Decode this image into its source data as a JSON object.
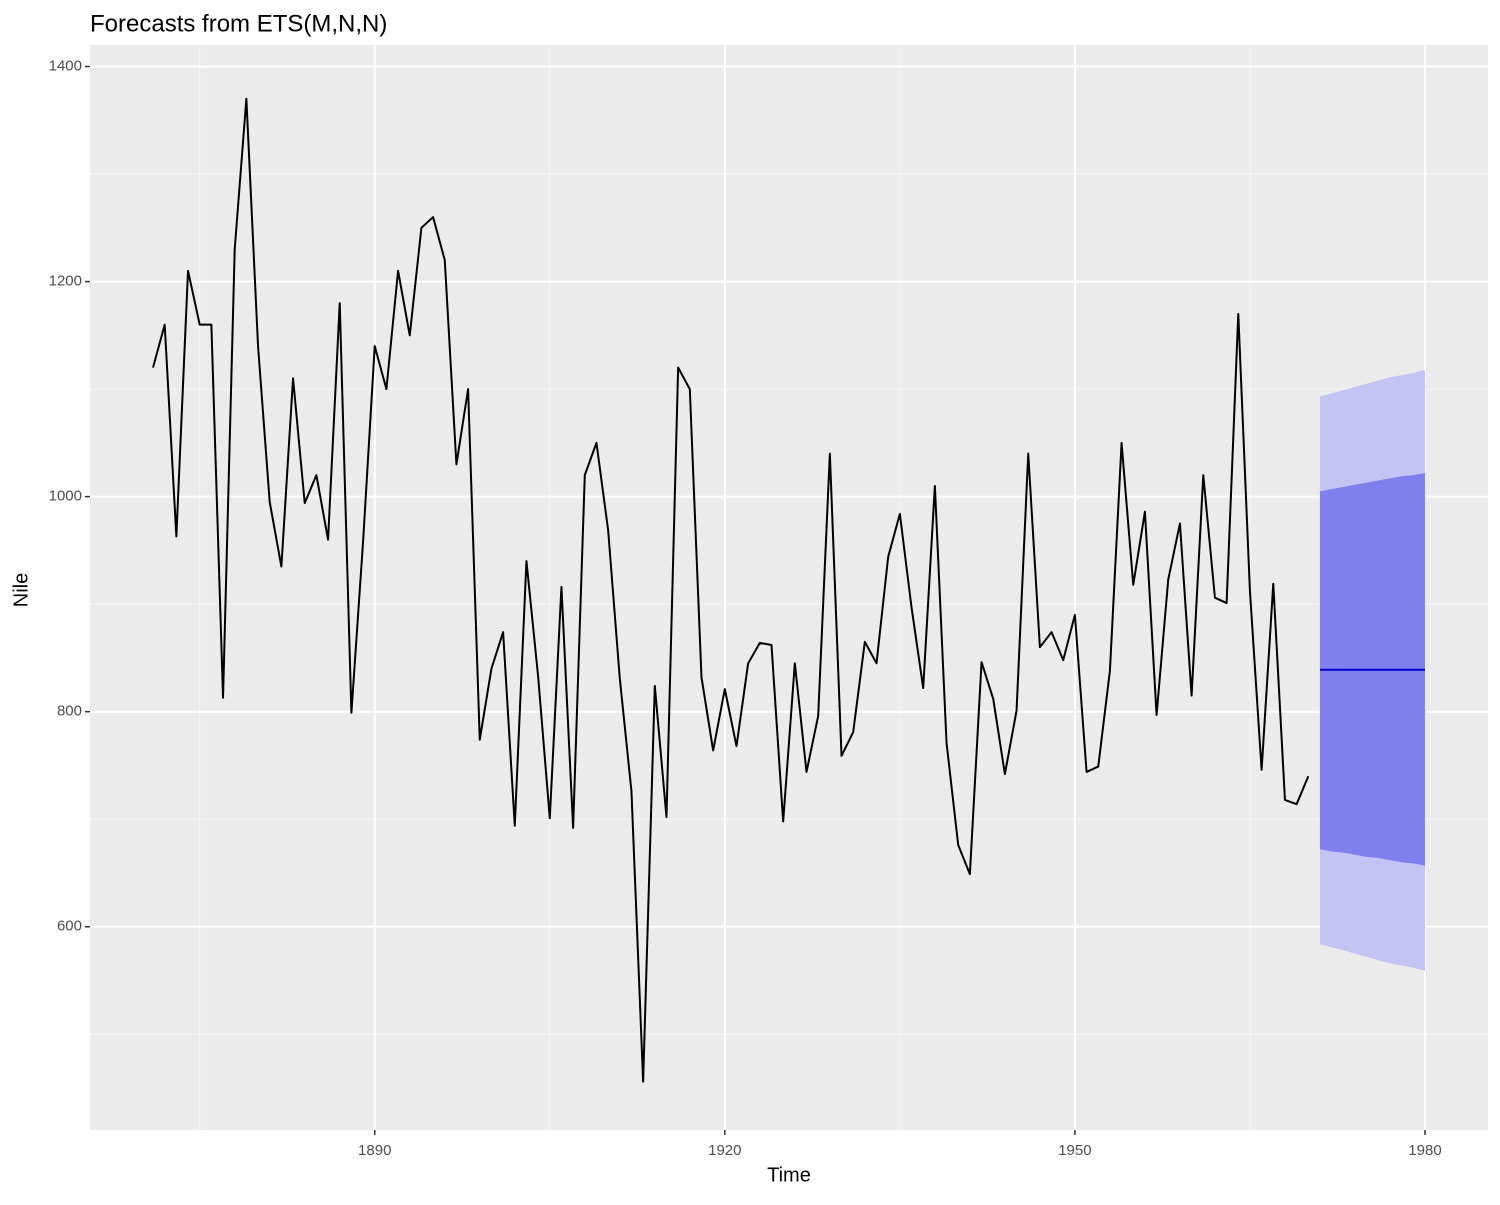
{
  "chart_data": {
    "type": "line",
    "title": "Forecasts from ETS(M,N,N)",
    "x_label": "Time",
    "y_label": "Nile",
    "x": [
      1871,
      1872,
      1873,
      1874,
      1875,
      1876,
      1877,
      1878,
      1879,
      1880,
      1881,
      1882,
      1883,
      1884,
      1885,
      1886,
      1887,
      1888,
      1889,
      1890,
      1891,
      1892,
      1893,
      1894,
      1895,
      1896,
      1897,
      1898,
      1899,
      1900,
      1901,
      1902,
      1903,
      1904,
      1905,
      1906,
      1907,
      1908,
      1909,
      1910,
      1911,
      1912,
      1913,
      1914,
      1915,
      1916,
      1917,
      1918,
      1919,
      1920,
      1921,
      1922,
      1923,
      1924,
      1925,
      1926,
      1927,
      1928,
      1929,
      1930,
      1931,
      1932,
      1933,
      1934,
      1935,
      1936,
      1937,
      1938,
      1939,
      1940,
      1941,
      1942,
      1943,
      1944,
      1945,
      1946,
      1947,
      1948,
      1949,
      1950,
      1951,
      1952,
      1953,
      1954,
      1955,
      1956,
      1957,
      1958,
      1959,
      1960,
      1961,
      1962,
      1963,
      1964,
      1965,
      1966,
      1967,
      1968,
      1969,
      1970
    ],
    "values": [
      1120,
      1160,
      963,
      1210,
      1160,
      1160,
      813,
      1230,
      1370,
      1140,
      995,
      935,
      1110,
      994,
      1020,
      960,
      1180,
      799,
      958,
      1140,
      1100,
      1210,
      1150,
      1250,
      1260,
      1220,
      1030,
      1100,
      774,
      840,
      874,
      694,
      940,
      833,
      701,
      916,
      692,
      1020,
      1050,
      969,
      831,
      726,
      456,
      824,
      702,
      1120,
      1100,
      832,
      764,
      821,
      768,
      845,
      864,
      862,
      698,
      845,
      744,
      796,
      1040,
      759,
      781,
      865,
      845,
      944,
      984,
      897,
      822,
      1010,
      771,
      676,
      649,
      846,
      812,
      742,
      801,
      1040,
      860,
      874,
      848,
      890,
      744,
      749,
      838,
      1050,
      918,
      986,
      797,
      923,
      975,
      815,
      1020,
      906,
      901,
      1170,
      912,
      746,
      919,
      718,
      714,
      740
    ],
    "color": "#000000",
    "forecast": {
      "x": [
        1971,
        1972,
        1973,
        1974,
        1975,
        1976,
        1977,
        1978,
        1979,
        1980
      ],
      "mean": [
        839,
        839,
        839,
        839,
        839,
        839,
        839,
        839,
        839,
        839
      ],
      "lo80": [
        672,
        670,
        669,
        667,
        665,
        664,
        662,
        660,
        659,
        657
      ],
      "hi80": [
        1005,
        1007,
        1009,
        1011,
        1013,
        1015,
        1017,
        1019,
        1020,
        1022
      ],
      "lo95": [
        584,
        581,
        578,
        575,
        572,
        569,
        566,
        564,
        562,
        559
      ],
      "hi95": [
        1093,
        1096,
        1099,
        1102,
        1105,
        1108,
        1111,
        1113,
        1115,
        1118
      ],
      "color_mean": "#0000cc",
      "color80": "#7f7fee",
      "color95": "#c3c3f4"
    },
    "xlim": [
      1865.6,
      1985.4
    ],
    "ylim": [
      411,
      1420
    ],
    "xticks": [
      1890,
      1920,
      1950,
      1980
    ],
    "yticks": [
      600,
      800,
      1000,
      1200,
      1400
    ],
    "grid": true
  }
}
